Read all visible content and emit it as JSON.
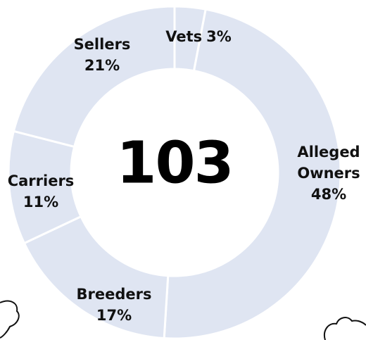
{
  "chart_data": {
    "type": "donut",
    "center_label": "103",
    "categories": [
      "Vets",
      "Alleged Owners",
      "Breeders",
      "Carriers",
      "Sellers"
    ],
    "values": [
      3,
      48,
      17,
      11,
      21
    ],
    "value_labels": [
      "3%",
      "48%",
      "17%",
      "11%",
      "21%"
    ],
    "color": "#dfe5f2"
  }
}
